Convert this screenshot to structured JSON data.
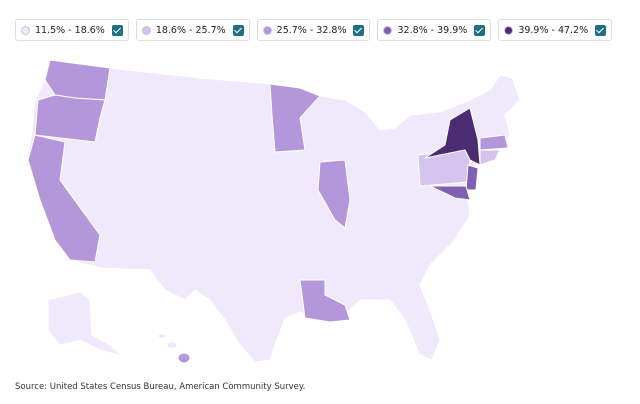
{
  "legend": {
    "items": [
      {
        "label": "11.5% - 18.6%",
        "color": "#efe9fb"
      },
      {
        "label": "18.6% - 25.7%",
        "color": "#d6c4ee"
      },
      {
        "label": "25.7% - 32.8%",
        "color": "#b497da"
      },
      {
        "label": "32.8% - 39.9%",
        "color": "#8060b0"
      },
      {
        "label": "39.9% - 47.2%",
        "color": "#4b2c73"
      }
    ]
  },
  "footer": {
    "source": "Source: United States Census Bureau, American Community Survey."
  }
}
